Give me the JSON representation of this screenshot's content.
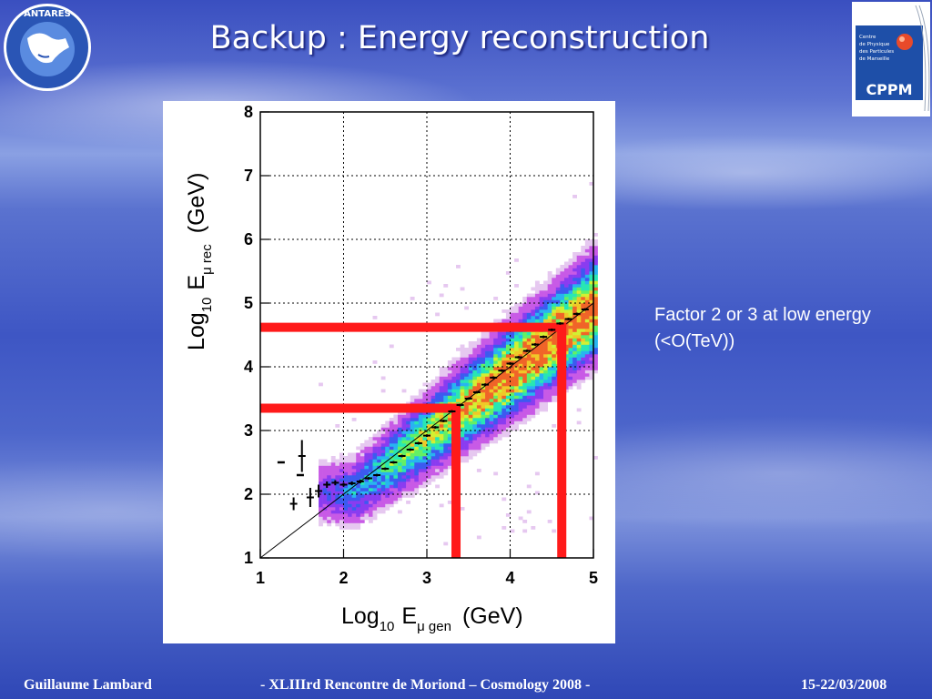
{
  "slide": {
    "title": "Backup : Energy reconstruction",
    "annotation": "Factor 2 or 3 at low energy (<O(TeV))",
    "logos": {
      "left_text": "ANTARES",
      "right_lines": [
        "Centre",
        "de Physique",
        "des Particules",
        "de Marseille"
      ],
      "right_acronym": "CPPM"
    },
    "footer": {
      "author": "Guillaume Lambard",
      "event": "-   XLIIIrd    Rencontre de Moriond – Cosmology 2008    -",
      "date": "15-22/03/2008"
    }
  },
  "chart_data": {
    "type": "heatmap",
    "xlabel": {
      "base": "Log",
      "sub": "10",
      "var": "E",
      "index": "μ gen",
      "unit": "(GeV)"
    },
    "ylabel": {
      "base": "Log",
      "sub": "10",
      "var": "E",
      "index": "μ rec",
      "unit": "(GeV)"
    },
    "xlim": [
      1,
      5
    ],
    "ylim": [
      1,
      8
    ],
    "xticks": [
      "1",
      "2",
      "3",
      "4",
      "5"
    ],
    "yticks": [
      "1",
      "2",
      "3",
      "4",
      "5",
      "6",
      "7",
      "8"
    ],
    "grid": true,
    "diagonal": [
      [
        1,
        1
      ],
      [
        5,
        5
      ]
    ],
    "profile_x": [
      1.4,
      1.5,
      1.6,
      1.7,
      1.8,
      1.9,
      2.0,
      2.1,
      2.2,
      2.3,
      2.4,
      2.5,
      2.6,
      2.7,
      2.8,
      2.9,
      3.0,
      3.1,
      3.2,
      3.3,
      3.4,
      3.5,
      3.6,
      3.7,
      3.8,
      3.9,
      4.0,
      4.1,
      4.2,
      4.3,
      4.4,
      4.5,
      4.6,
      4.7,
      4.8,
      4.9
    ],
    "profile_y": [
      1.85,
      2.6,
      1.95,
      2.05,
      2.15,
      2.18,
      2.15,
      2.17,
      2.2,
      2.25,
      2.3,
      2.4,
      2.5,
      2.6,
      2.7,
      2.8,
      2.92,
      3.05,
      3.15,
      3.3,
      3.4,
      3.5,
      3.6,
      3.72,
      3.83,
      3.94,
      4.05,
      4.15,
      4.25,
      4.35,
      4.47,
      4.58,
      4.68,
      4.75,
      4.83,
      4.9
    ],
    "profile_err": [
      0.1,
      0.25,
      0.15,
      0.1,
      0.05,
      0.04,
      0.03,
      0.03,
      0.03,
      0.02,
      0.02,
      0.02,
      0.02,
      0.02,
      0.02,
      0.02,
      0.02,
      0.02,
      0.02,
      0.02,
      0.02,
      0.02,
      0.02,
      0.02,
      0.02,
      0.02,
      0.02,
      0.02,
      0.02,
      0.02,
      0.02,
      0.02,
      0.02,
      0.02,
      0.02,
      0.02
    ],
    "outliers": [
      {
        "x": 1.25,
        "y": 2.5
      },
      {
        "x": 1.48,
        "y": 2.3
      }
    ],
    "highlight_boxes": [
      {
        "x_max": 3.35,
        "y_max": 3.35,
        "color": "#ff1a1a"
      },
      {
        "x_max": 4.62,
        "y_max": 4.62,
        "color": "#ff1a1a"
      }
    ],
    "density_colors": [
      "#e6c8f0",
      "#c85ae6",
      "#8a3cf0",
      "#3c5af0",
      "#28b4f0",
      "#28e6b4",
      "#64f064",
      "#d2f032",
      "#f0c828",
      "#f06428"
    ]
  }
}
